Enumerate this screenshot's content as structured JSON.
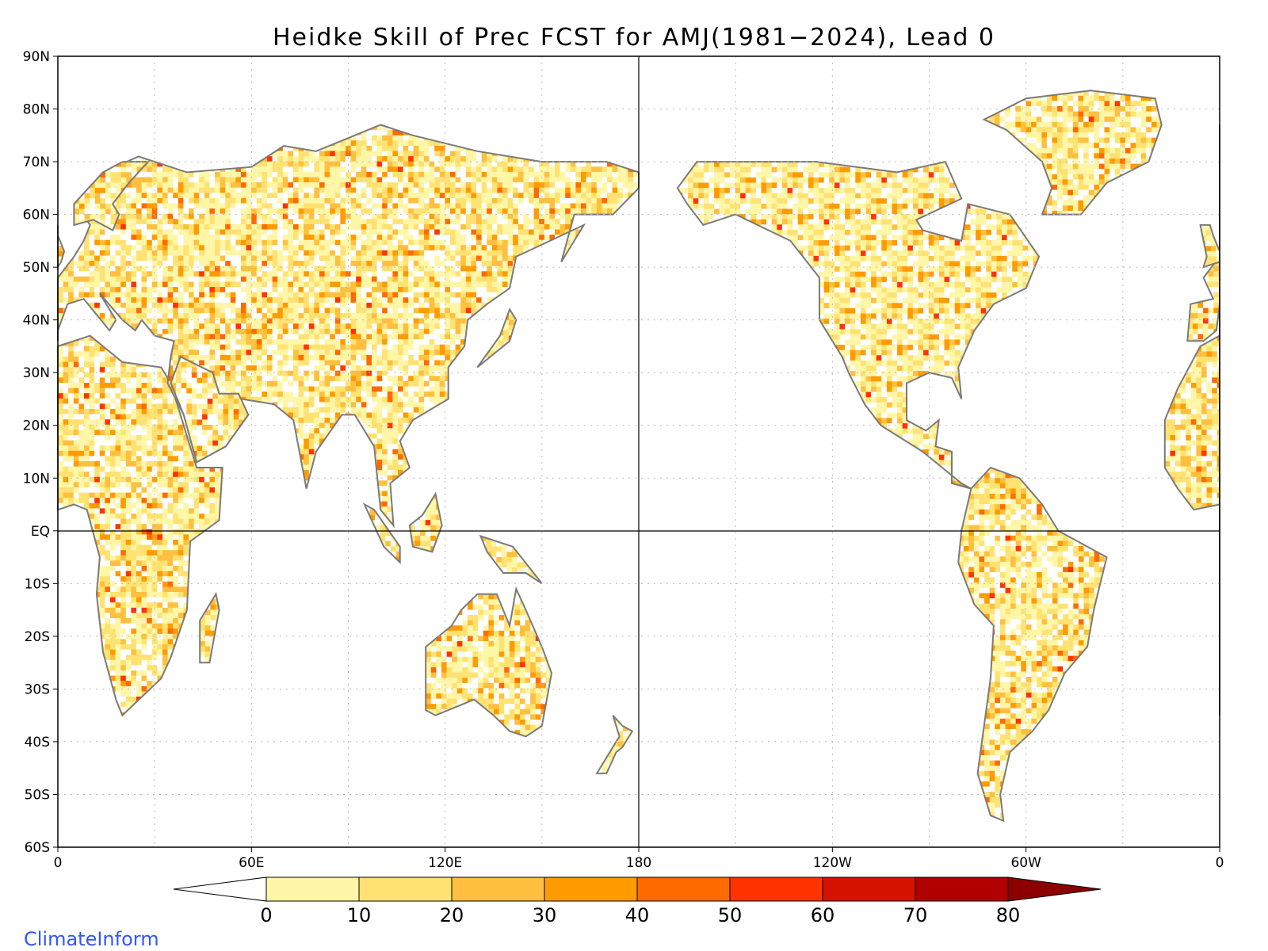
{
  "title": "Heidke Skill of Prec FCST for AMJ(1981−2024), Lead 0",
  "credit": "ClimateInform",
  "axes": {
    "lat_labels": [
      "90N",
      "80N",
      "70N",
      "60N",
      "50N",
      "40N",
      "30N",
      "20N",
      "10N",
      "EQ",
      "10S",
      "20S",
      "30S",
      "40S",
      "50S",
      "60S"
    ],
    "lon_labels": [
      "0",
      "60E",
      "120E",
      "180",
      "120W",
      "60W",
      "0"
    ]
  },
  "colorbar": {
    "tick_labels": [
      "0",
      "10",
      "20",
      "30",
      "40",
      "50",
      "60",
      "70",
      "80"
    ],
    "colors": [
      "#ffffff",
      "#fff6a8",
      "#ffe272",
      "#ffbf3f",
      "#ff9b00",
      "#ff6a00",
      "#ff3300",
      "#d61200",
      "#b00000",
      "#8c0000"
    ]
  },
  "colors": {
    "coastline": "#7a7a7a",
    "reference_lines": "#000000",
    "gridlines": "#bbbbbb",
    "credit": "#3355ff"
  },
  "map": {
    "projection": "cylindrical equidistant",
    "lon_range": [
      0,
      360
    ],
    "lat_range": [
      -60,
      90
    ],
    "gridlines": "dotted",
    "central_longitude": 180
  }
}
